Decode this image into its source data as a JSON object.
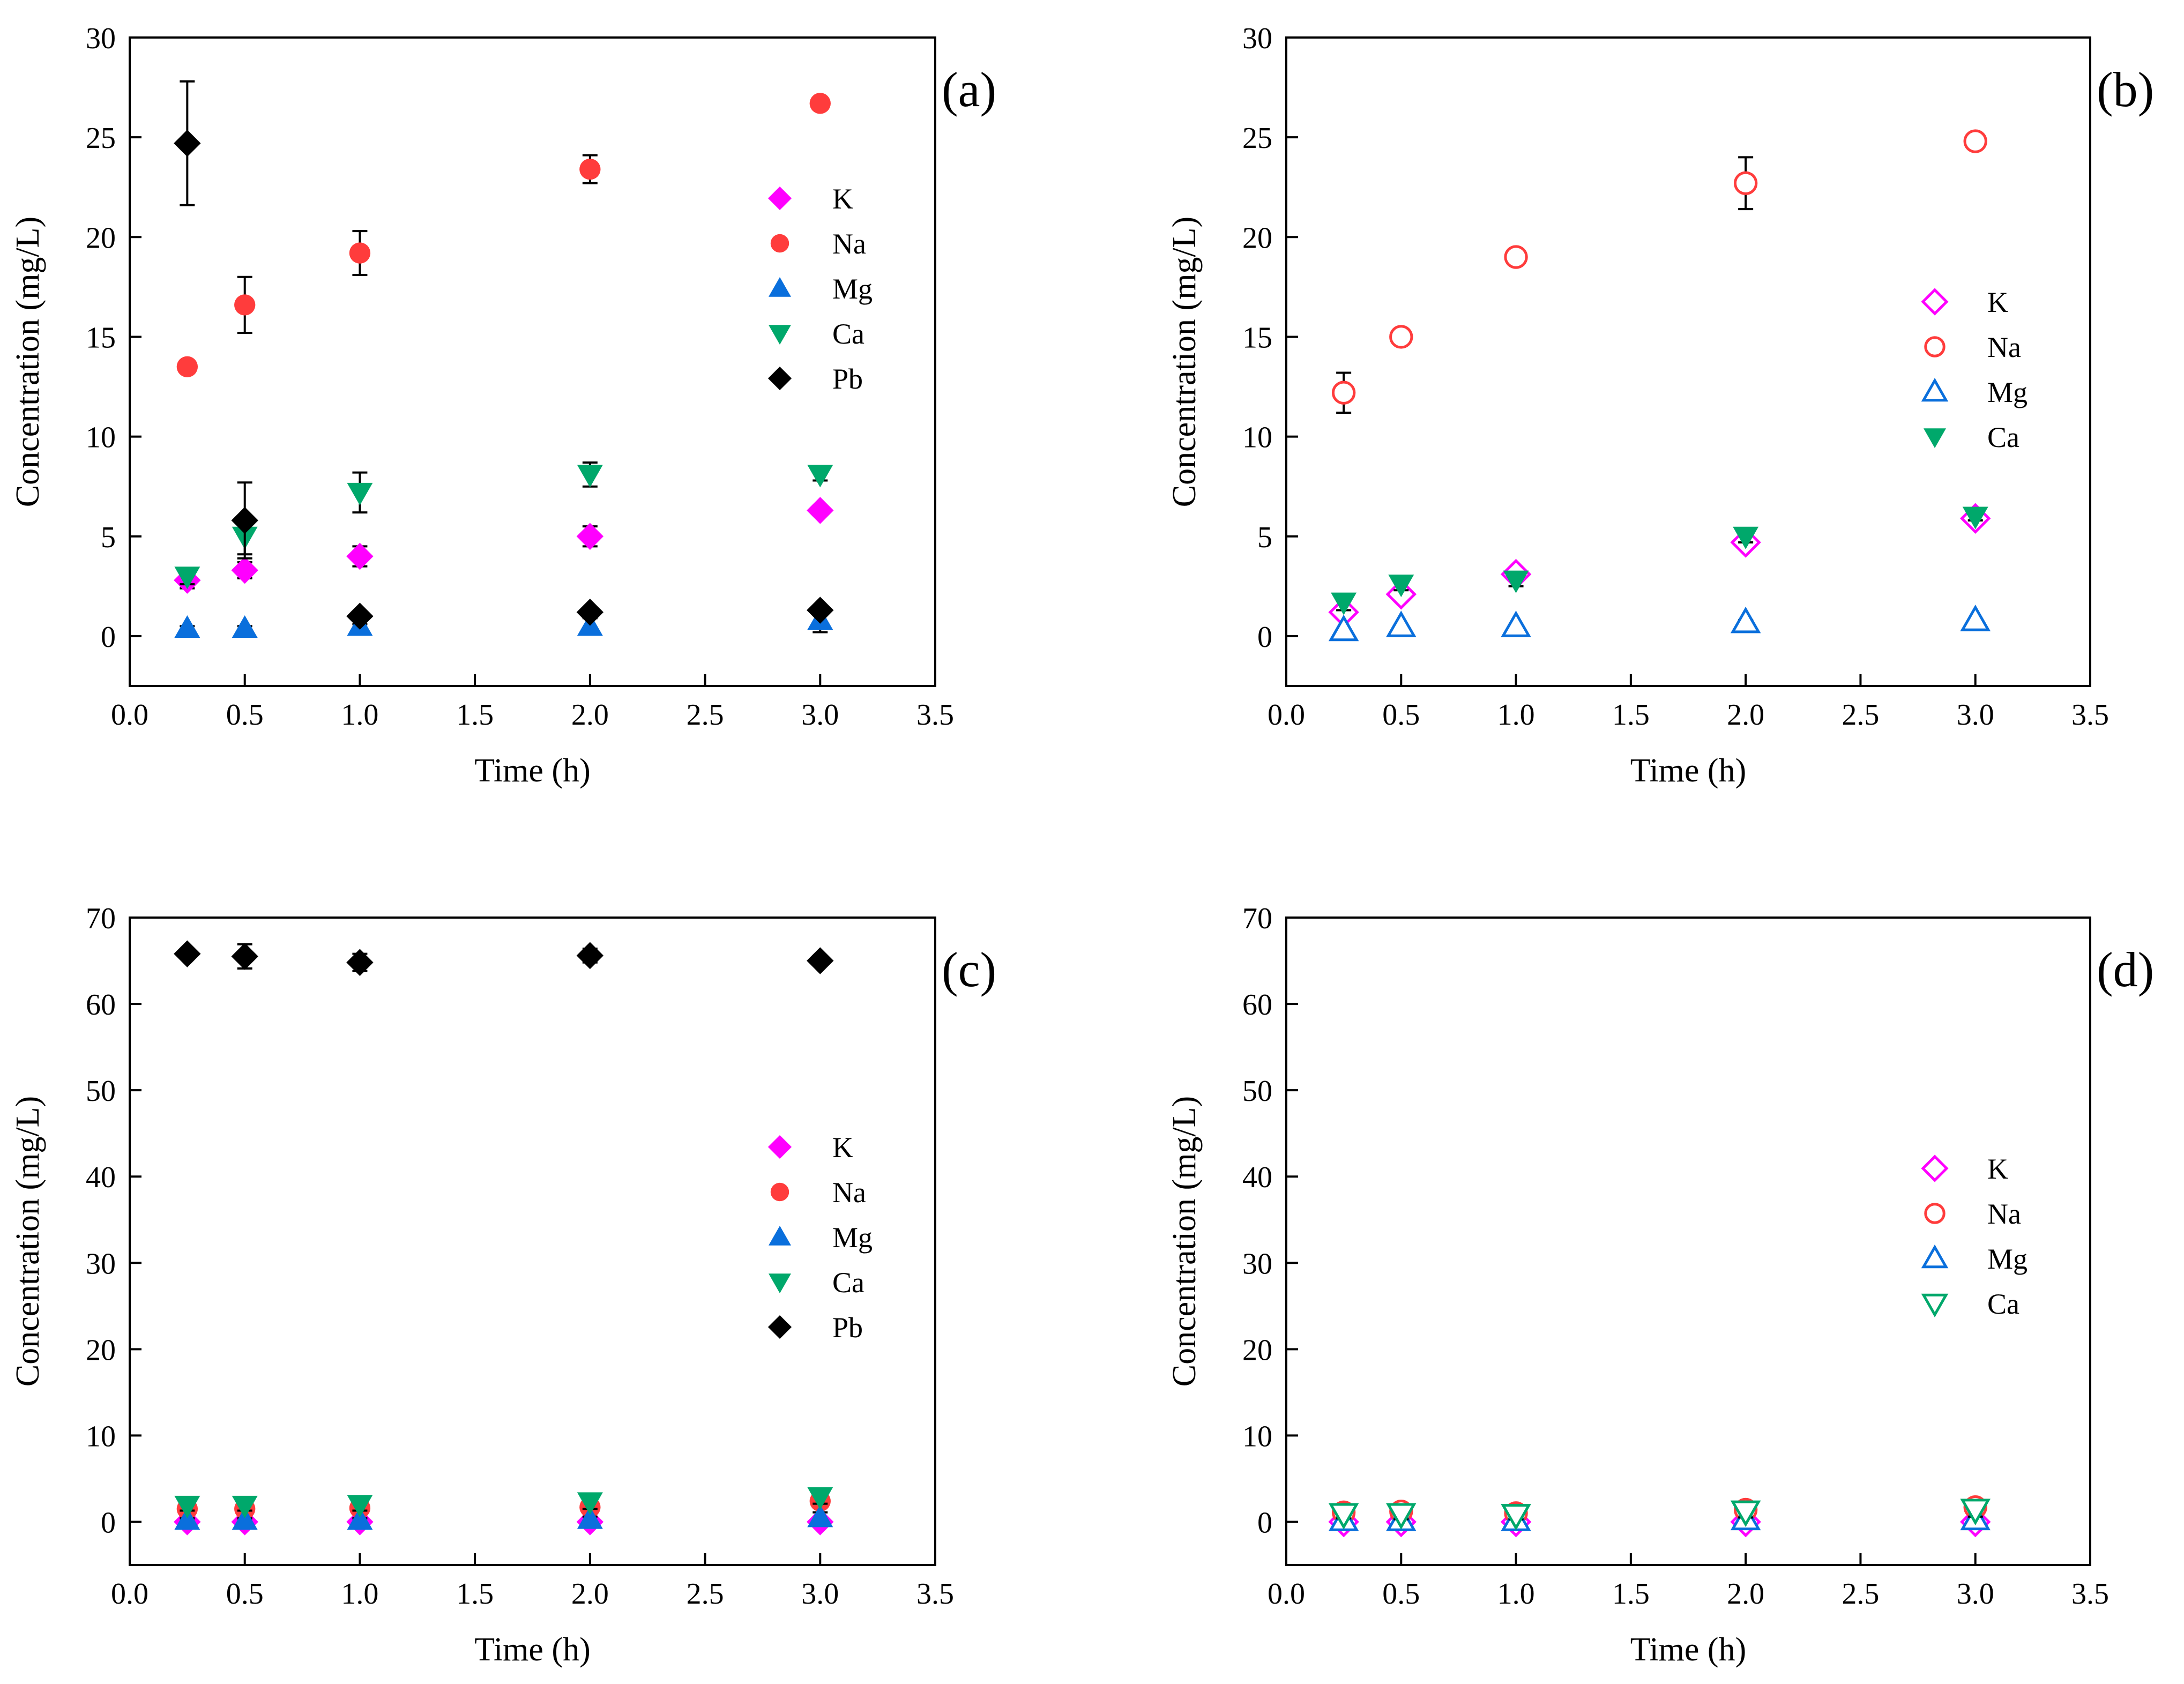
{
  "figure": {
    "colors": {
      "K": "#ff00ff",
      "Na": "#ff3c3c",
      "Mg": "#0a6fdc",
      "Ca": "#00a86b",
      "Pb": "#000000"
    }
  },
  "chart_data": [
    {
      "type": "scatter",
      "panel_label": "(a)",
      "xlabel": "Time (h)",
      "ylabel": "Concentration (mg/L)",
      "xlim": [
        0.0,
        3.5
      ],
      "ylim": [
        -2.5,
        30
      ],
      "xticks": [
        "0.0",
        "0.5",
        "1.0",
        "1.5",
        "2.0",
        "2.5",
        "3.0",
        "3.5"
      ],
      "yticks": [
        "0",
        "5",
        "10",
        "15",
        "20",
        "25",
        "30"
      ],
      "grid": false,
      "legend_position": "right",
      "x": [
        0.25,
        0.5,
        1.0,
        2.0,
        3.0
      ],
      "series": [
        {
          "name": "K",
          "marker": "diamond",
          "filled": true,
          "values": [
            2.8,
            3.3,
            4.0,
            5.0,
            6.3
          ],
          "errors": [
            0.4,
            0.4,
            0.5,
            0.5,
            0.2
          ]
        },
        {
          "name": "Na",
          "marker": "circle",
          "filled": true,
          "values": [
            13.5,
            16.6,
            19.2,
            23.4,
            26.7
          ],
          "errors": [
            0.2,
            1.4,
            1.1,
            0.7,
            0.3
          ]
        },
        {
          "name": "Mg",
          "marker": "triangle-up",
          "filled": true,
          "values": [
            0.4,
            0.4,
            0.5,
            0.5,
            0.8
          ],
          "errors": [
            0.1,
            0.1,
            0.1,
            0.4,
            0.6
          ]
        },
        {
          "name": "Ca",
          "marker": "triangle-down",
          "filled": true,
          "values": [
            3.0,
            5.0,
            7.2,
            8.1,
            8.1
          ],
          "errors": [
            0.4,
            0.9,
            1.0,
            0.6,
            0.3
          ]
        },
        {
          "name": "Pb",
          "marker": "diamond",
          "filled": true,
          "values": [
            24.7,
            5.8,
            1.0,
            1.2,
            1.3
          ],
          "errors": [
            3.1,
            1.9,
            0.2,
            0.2,
            0.2
          ]
        }
      ]
    },
    {
      "type": "scatter",
      "panel_label": "(b)",
      "xlabel": "Time (h)",
      "ylabel": "Concentration (mg/L)",
      "xlim": [
        0.0,
        3.5
      ],
      "ylim": [
        -2.5,
        30
      ],
      "xticks": [
        "0.0",
        "0.5",
        "1.0",
        "1.5",
        "2.0",
        "2.5",
        "3.0",
        "3.5"
      ],
      "yticks": [
        "0",
        "5",
        "10",
        "15",
        "20",
        "25",
        "30"
      ],
      "grid": false,
      "legend_position": "right",
      "x": [
        0.25,
        0.5,
        1.0,
        2.0,
        3.0
      ],
      "series": [
        {
          "name": "K",
          "marker": "diamond",
          "filled": false,
          "values": [
            1.2,
            2.1,
            3.1,
            4.7,
            5.9
          ],
          "errors": [
            0.3,
            0.2,
            0.2,
            0.3,
            0.2
          ]
        },
        {
          "name": "Na",
          "marker": "circle",
          "filled": false,
          "values": [
            12.2,
            15.0,
            19.0,
            22.7,
            24.8
          ],
          "errors": [
            1.0,
            0.2,
            0.3,
            1.3,
            0.2
          ]
        },
        {
          "name": "Mg",
          "marker": "triangle-up",
          "filled": false,
          "values": [
            0.3,
            0.5,
            0.5,
            0.7,
            0.8
          ],
          "errors": [
            0.05,
            0.05,
            0.05,
            0.1,
            0.05
          ]
        },
        {
          "name": "Ca",
          "marker": "triangle-down",
          "filled": true,
          "values": [
            1.7,
            2.6,
            2.8,
            5.0,
            6.0
          ],
          "errors": [
            0.4,
            0.3,
            0.3,
            0.3,
            0.2
          ]
        }
      ]
    },
    {
      "type": "scatter",
      "panel_label": "(c)",
      "xlabel": "Time (h)",
      "ylabel": "Concentration (mg/L)",
      "xlim": [
        0.0,
        3.5
      ],
      "ylim": [
        -5,
        70
      ],
      "xticks": [
        "0.0",
        "0.5",
        "1.0",
        "1.5",
        "2.0",
        "2.5",
        "3.0",
        "3.5"
      ],
      "yticks": [
        "0",
        "10",
        "20",
        "30",
        "40",
        "50",
        "60",
        "70"
      ],
      "grid": false,
      "legend_position": "right",
      "x": [
        0.25,
        0.5,
        1.0,
        2.0,
        3.0
      ],
      "series": [
        {
          "name": "K",
          "marker": "diamond",
          "filled": true,
          "values": [
            0.0,
            0.0,
            0.0,
            0.0,
            0.0
          ],
          "errors": [
            0.1,
            0.1,
            0.1,
            0.1,
            0.1
          ]
        },
        {
          "name": "Na",
          "marker": "circle",
          "filled": true,
          "values": [
            1.5,
            1.5,
            1.6,
            1.7,
            2.4
          ],
          "errors": [
            0.4,
            0.4,
            0.4,
            0.5,
            0.5
          ]
        },
        {
          "name": "Mg",
          "marker": "triangle-up",
          "filled": true,
          "values": [
            0.2,
            0.2,
            0.2,
            0.3,
            0.5
          ],
          "errors": [
            0.2,
            0.2,
            0.2,
            0.3,
            0.6
          ]
        },
        {
          "name": "Ca",
          "marker": "triangle-down",
          "filled": true,
          "values": [
            1.9,
            1.9,
            2.0,
            2.3,
            2.9
          ],
          "errors": [
            0.6,
            0.6,
            0.7,
            0.8,
            0.8
          ]
        },
        {
          "name": "Pb",
          "marker": "diamond",
          "filled": true,
          "values": [
            65.8,
            65.5,
            64.8,
            65.6,
            65.0
          ],
          "errors": [
            0.3,
            1.4,
            1.0,
            0.8,
            0.3
          ]
        }
      ]
    },
    {
      "type": "scatter",
      "panel_label": "(d)",
      "xlabel": "Time (h)",
      "ylabel": "Concentration (mg/L)",
      "xlim": [
        0.0,
        3.5
      ],
      "ylim": [
        -5,
        70
      ],
      "xticks": [
        "0.0",
        "0.5",
        "1.0",
        "1.5",
        "2.0",
        "2.5",
        "3.0",
        "3.5"
      ],
      "yticks": [
        "0",
        "10",
        "20",
        "30",
        "40",
        "50",
        "60",
        "70"
      ],
      "grid": false,
      "legend_position": "right",
      "x": [
        0.25,
        0.5,
        1.0,
        2.0,
        3.0
      ],
      "series": [
        {
          "name": "K",
          "marker": "diamond",
          "filled": false,
          "values": [
            0.0,
            0.0,
            0.0,
            0.0,
            0.0
          ],
          "errors": [
            0.1,
            0.1,
            0.1,
            0.1,
            0.1
          ]
        },
        {
          "name": "Na",
          "marker": "circle",
          "filled": false,
          "values": [
            1.1,
            1.2,
            1.0,
            1.4,
            1.7
          ],
          "errors": [
            0.4,
            0.5,
            0.5,
            0.8,
            0.8
          ]
        },
        {
          "name": "Mg",
          "marker": "triangle-up",
          "filled": false,
          "values": [
            0.2,
            0.2,
            0.2,
            0.3,
            0.3
          ],
          "errors": [
            0.1,
            0.1,
            0.1,
            0.1,
            0.1
          ]
        },
        {
          "name": "Ca",
          "marker": "triangle-down",
          "filled": false,
          "values": [
            0.9,
            0.9,
            0.8,
            1.2,
            1.4
          ],
          "errors": [
            0.5,
            0.6,
            0.5,
            0.7,
            0.8
          ]
        }
      ]
    }
  ]
}
